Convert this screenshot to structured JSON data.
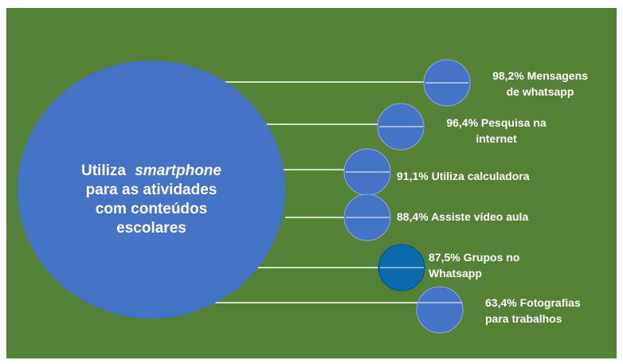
{
  "colors": {
    "background": "#538135",
    "main_circle": "#4472c4",
    "node": "#4472c4",
    "node_dark": "#0a6aad",
    "line": "#ffffff",
    "text": "#ffffff"
  },
  "center": {
    "line1_prefix": "Utiliza",
    "line1_italic": "smartphone",
    "line2": "para as atividades",
    "line3": "com conteúdos",
    "line4": "escolares"
  },
  "items": [
    {
      "value_percent": 98.2,
      "label_line1": "98,2% Mensagens",
      "label_line2": "de whatsapp",
      "highlight": false
    },
    {
      "value_percent": 96.4,
      "label_line1": "96,4% Pesquisa na",
      "label_line2": "internet",
      "highlight": false
    },
    {
      "value_percent": 91.1,
      "label_line1": "91,1% Utiliza calculadora",
      "label_line2": "",
      "highlight": false
    },
    {
      "value_percent": 88.4,
      "label_line1": "88,4% Assiste vídeo aula",
      "label_line2": "",
      "highlight": false
    },
    {
      "value_percent": 87.5,
      "label_line1": "87,5% Grupos no",
      "label_line2": "Whatsapp",
      "highlight": true
    },
    {
      "value_percent": 63.4,
      "label_line1": "63,4% Fotografias",
      "label_line2": "para trabalhos",
      "highlight": false
    }
  ]
}
